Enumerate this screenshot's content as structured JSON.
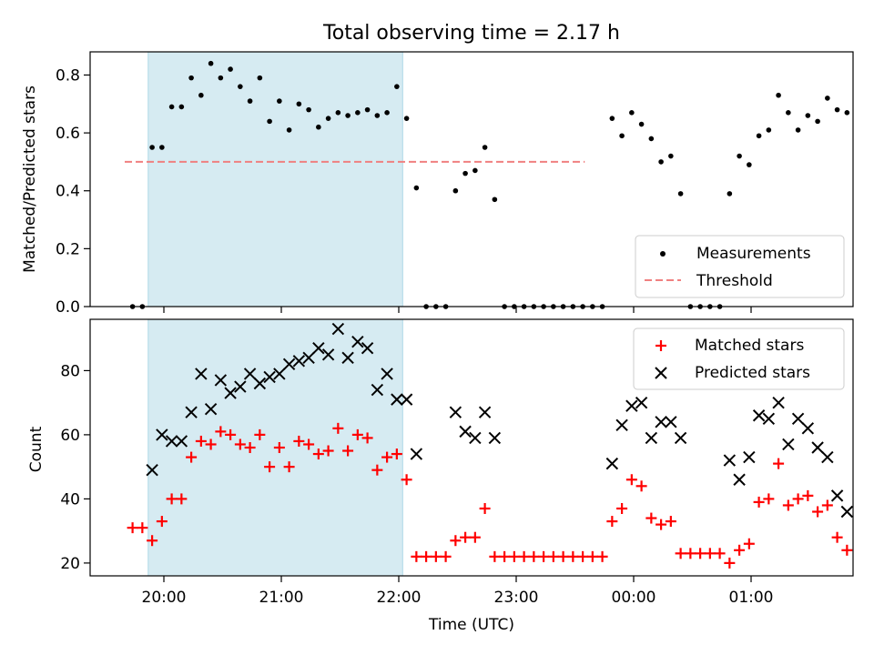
{
  "chart_data": [
    {
      "type": "scatter",
      "title": "Total observing time = 2.17 h",
      "ylabel": "Matched/Predicted stars",
      "ylim": [
        0,
        0.88
      ],
      "yticks": [
        "0.0",
        "0.2",
        "0.4",
        "0.6",
        "0.8"
      ],
      "shaded_span": [
        "19:52",
        "22:02"
      ],
      "threshold": {
        "value": 0.5,
        "x_range": [
          "19:40",
          "23:35"
        ],
        "color": "#f08080"
      },
      "legend_position": "lower right",
      "series": [
        {
          "name": "Measurements",
          "marker": "dot",
          "color": "#000000",
          "points": [
            [
              "19:44",
              0.0
            ],
            [
              "19:49",
              0.0
            ],
            [
              "19:54",
              0.55
            ],
            [
              "19:59",
              0.55
            ],
            [
              "20:04",
              0.69
            ],
            [
              "20:09",
              0.69
            ],
            [
              "20:14",
              0.79
            ],
            [
              "20:19",
              0.73
            ],
            [
              "20:24",
              0.84
            ],
            [
              "20:29",
              0.79
            ],
            [
              "20:34",
              0.82
            ],
            [
              "20:39",
              0.76
            ],
            [
              "20:44",
              0.71
            ],
            [
              "20:49",
              0.79
            ],
            [
              "20:54",
              0.64
            ],
            [
              "20:59",
              0.71
            ],
            [
              "21:04",
              0.61
            ],
            [
              "21:09",
              0.7
            ],
            [
              "21:14",
              0.68
            ],
            [
              "21:19",
              0.62
            ],
            [
              "21:24",
              0.65
            ],
            [
              "21:29",
              0.67
            ],
            [
              "21:34",
              0.66
            ],
            [
              "21:39",
              0.67
            ],
            [
              "21:44",
              0.68
            ],
            [
              "21:49",
              0.66
            ],
            [
              "21:54",
              0.67
            ],
            [
              "21:59",
              0.76
            ],
            [
              "22:04",
              0.65
            ],
            [
              "22:09",
              0.41
            ],
            [
              "22:14",
              0.0
            ],
            [
              "22:19",
              0.0
            ],
            [
              "22:24",
              0.0
            ],
            [
              "22:29",
              0.4
            ],
            [
              "22:34",
              0.46
            ],
            [
              "22:39",
              0.47
            ],
            [
              "22:44",
              0.55
            ],
            [
              "22:49",
              0.37
            ],
            [
              "22:54",
              0.0
            ],
            [
              "22:59",
              0.0
            ],
            [
              "23:04",
              0.0
            ],
            [
              "23:09",
              0.0
            ],
            [
              "23:14",
              0.0
            ],
            [
              "23:19",
              0.0
            ],
            [
              "23:24",
              0.0
            ],
            [
              "23:29",
              0.0
            ],
            [
              "23:34",
              0.0
            ],
            [
              "23:39",
              0.0
            ],
            [
              "23:44",
              0.0
            ],
            [
              "23:49",
              0.65
            ],
            [
              "23:54",
              0.59
            ],
            [
              "23:59",
              0.67
            ],
            [
              "00:04",
              0.63
            ],
            [
              "00:09",
              0.58
            ],
            [
              "00:14",
              0.5
            ],
            [
              "00:19",
              0.52
            ],
            [
              "00:24",
              0.39
            ],
            [
              "00:29",
              0.0
            ],
            [
              "00:34",
              0.0
            ],
            [
              "00:39",
              0.0
            ],
            [
              "00:44",
              0.0
            ],
            [
              "00:49",
              0.39
            ],
            [
              "00:54",
              0.52
            ],
            [
              "00:59",
              0.49
            ],
            [
              "01:04",
              0.59
            ],
            [
              "01:09",
              0.61
            ],
            [
              "01:14",
              0.73
            ],
            [
              "01:19",
              0.67
            ],
            [
              "01:24",
              0.61
            ],
            [
              "01:29",
              0.66
            ],
            [
              "01:34",
              0.64
            ],
            [
              "01:39",
              0.72
            ],
            [
              "01:44",
              0.68
            ],
            [
              "01:49",
              0.67
            ]
          ]
        },
        {
          "name": "Threshold",
          "marker": "dashed-line",
          "color": "#f08080"
        }
      ]
    },
    {
      "type": "scatter",
      "xlabel": "Time (UTC)",
      "ylabel": "Count",
      "ylim": [
        16,
        96
      ],
      "yticks": [
        "20",
        "40",
        "60",
        "80"
      ],
      "xticks": [
        "20:00",
        "21:00",
        "22:00",
        "23:00",
        "00:00",
        "01:00"
      ],
      "shaded_span": [
        "19:52",
        "22:02"
      ],
      "legend_position": "upper right",
      "series": [
        {
          "name": "Matched stars",
          "marker": "plus",
          "color": "#ff0000",
          "points": [
            [
              "19:44",
              31
            ],
            [
              "19:49",
              31
            ],
            [
              "19:54",
              27
            ],
            [
              "19:59",
              33
            ],
            [
              "20:04",
              40
            ],
            [
              "20:09",
              40
            ],
            [
              "20:14",
              53
            ],
            [
              "20:19",
              58
            ],
            [
              "20:24",
              57
            ],
            [
              "20:29",
              61
            ],
            [
              "20:34",
              60
            ],
            [
              "20:39",
              57
            ],
            [
              "20:44",
              56
            ],
            [
              "20:49",
              60
            ],
            [
              "20:54",
              50
            ],
            [
              "20:59",
              56
            ],
            [
              "21:04",
              50
            ],
            [
              "21:09",
              58
            ],
            [
              "21:14",
              57
            ],
            [
              "21:19",
              54
            ],
            [
              "21:24",
              55
            ],
            [
              "21:29",
              62
            ],
            [
              "21:34",
              55
            ],
            [
              "21:39",
              60
            ],
            [
              "21:44",
              59
            ],
            [
              "21:49",
              49
            ],
            [
              "21:54",
              53
            ],
            [
              "21:59",
              54
            ],
            [
              "22:04",
              46
            ],
            [
              "22:09",
              22
            ],
            [
              "22:14",
              22
            ],
            [
              "22:19",
              22
            ],
            [
              "22:24",
              22
            ],
            [
              "22:29",
              27
            ],
            [
              "22:34",
              28
            ],
            [
              "22:39",
              28
            ],
            [
              "22:44",
              37
            ],
            [
              "22:49",
              22
            ],
            [
              "22:54",
              22
            ],
            [
              "22:59",
              22
            ],
            [
              "23:04",
              22
            ],
            [
              "23:09",
              22
            ],
            [
              "23:14",
              22
            ],
            [
              "23:19",
              22
            ],
            [
              "23:24",
              22
            ],
            [
              "23:29",
              22
            ],
            [
              "23:34",
              22
            ],
            [
              "23:39",
              22
            ],
            [
              "23:44",
              22
            ],
            [
              "23:49",
              33
            ],
            [
              "23:54",
              37
            ],
            [
              "23:59",
              46
            ],
            [
              "00:04",
              44
            ],
            [
              "00:09",
              34
            ],
            [
              "00:14",
              32
            ],
            [
              "00:19",
              33
            ],
            [
              "00:24",
              23
            ],
            [
              "00:29",
              23
            ],
            [
              "00:34",
              23
            ],
            [
              "00:39",
              23
            ],
            [
              "00:44",
              23
            ],
            [
              "00:49",
              20
            ],
            [
              "00:54",
              24
            ],
            [
              "00:59",
              26
            ],
            [
              "01:04",
              39
            ],
            [
              "01:09",
              40
            ],
            [
              "01:14",
              51
            ],
            [
              "01:19",
              38
            ],
            [
              "01:24",
              40
            ],
            [
              "01:29",
              41
            ],
            [
              "01:34",
              36
            ],
            [
              "01:39",
              38
            ],
            [
              "01:44",
              28
            ],
            [
              "01:49",
              24
            ]
          ]
        },
        {
          "name": "Predicted stars",
          "marker": "x",
          "color": "#000000",
          "points": [
            [
              "19:54",
              49
            ],
            [
              "19:59",
              60
            ],
            [
              "20:04",
              58
            ],
            [
              "20:09",
              58
            ],
            [
              "20:14",
              67
            ],
            [
              "20:19",
              79
            ],
            [
              "20:24",
              68
            ],
            [
              "20:29",
              77
            ],
            [
              "20:34",
              73
            ],
            [
              "20:39",
              75
            ],
            [
              "20:44",
              79
            ],
            [
              "20:49",
              76
            ],
            [
              "20:54",
              78
            ],
            [
              "20:59",
              79
            ],
            [
              "21:04",
              82
            ],
            [
              "21:09",
              83
            ],
            [
              "21:14",
              84
            ],
            [
              "21:19",
              87
            ],
            [
              "21:24",
              85
            ],
            [
              "21:29",
              93
            ],
            [
              "21:34",
              84
            ],
            [
              "21:39",
              89
            ],
            [
              "21:44",
              87
            ],
            [
              "21:49",
              74
            ],
            [
              "21:54",
              79
            ],
            [
              "21:59",
              71
            ],
            [
              "22:04",
              71
            ],
            [
              "22:09",
              54
            ],
            [
              "22:29",
              67
            ],
            [
              "22:34",
              61
            ],
            [
              "22:39",
              59
            ],
            [
              "22:44",
              67
            ],
            [
              "22:49",
              59
            ],
            [
              "23:49",
              51
            ],
            [
              "23:54",
              63
            ],
            [
              "23:59",
              69
            ],
            [
              "00:04",
              70
            ],
            [
              "00:09",
              59
            ],
            [
              "00:14",
              64
            ],
            [
              "00:19",
              64
            ],
            [
              "00:24",
              59
            ],
            [
              "00:49",
              52
            ],
            [
              "00:54",
              46
            ],
            [
              "00:59",
              53
            ],
            [
              "01:04",
              66
            ],
            [
              "01:09",
              65
            ],
            [
              "01:14",
              70
            ],
            [
              "01:19",
              57
            ],
            [
              "01:24",
              65
            ],
            [
              "01:29",
              62
            ],
            [
              "01:34",
              56
            ],
            [
              "01:39",
              53
            ],
            [
              "01:44",
              41
            ],
            [
              "01:49",
              36
            ]
          ]
        }
      ]
    }
  ]
}
